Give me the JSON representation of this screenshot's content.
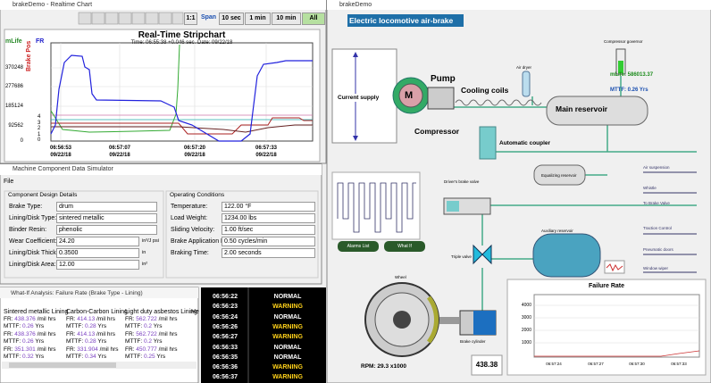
{
  "realtime_window": {
    "title": "brakeDemo - Realtime Chart",
    "toolbar": [
      "1:1",
      "Span",
      "10 sec",
      "1 min",
      "10 min",
      "All"
    ],
    "chart_title": "Real-Time Stripchart",
    "subtitle": "Time: 06:55:38 +0.046 sec. Date: 09/22/18",
    "axis_labels": {
      "left": "mLife",
      "right": "FR",
      "brake": "Brake Pos"
    },
    "y_ticks_left": [
      "370248",
      "277686",
      "185124",
      "92562",
      "0"
    ],
    "y_ticks_right": [
      "4",
      "3",
      "2",
      "1",
      "0"
    ],
    "x_ticks": [
      {
        "time": "06:56:53",
        "date": "09/22/18"
      },
      {
        "time": "06:57:07",
        "date": "09/22/18"
      },
      {
        "time": "06:57:20",
        "date": "09/22/18"
      },
      {
        "time": "06:57:33",
        "date": "09/22/18"
      }
    ]
  },
  "simulator_window": {
    "title": "Machine Component Data Simulator",
    "menu": "File",
    "design_group": "Component Design Details",
    "design_fields": [
      {
        "label": "Brake Type:",
        "value": "drum",
        "kind": "combo"
      },
      {
        "label": "Lining/Disk Type:",
        "value": "sintered metallic",
        "kind": "combo"
      },
      {
        "label": "Binder Resin:",
        "value": "phenolic",
        "kind": "combo"
      },
      {
        "label": "Wear Coefficient:",
        "value": "24.20",
        "kind": "spin",
        "unit": "in³/J psi"
      },
      {
        "label": "Lining/Disk Thickness:",
        "value": "0.3500",
        "kind": "spin",
        "unit": "in"
      },
      {
        "label": "Lining/Disk Area:",
        "value": "12.00",
        "kind": "spin",
        "unit": "in²"
      }
    ],
    "operating_group": "Operating Conditions",
    "operating_fields": [
      {
        "label": "Temperature:",
        "value": "122.00 °F"
      },
      {
        "label": "Load Weight:",
        "value": "1234.00 lbs"
      },
      {
        "label": "Sliding Velocity:",
        "value": "1.00 ft/sec"
      },
      {
        "label": "Brake Application Rate:",
        "value": "0.50 cycles/min"
      },
      {
        "label": "Braking Time:",
        "value": "2.00 seconds"
      }
    ]
  },
  "whatif_window": {
    "title": "What-If Analysis: Failure Rate (Brake Type - Lining)",
    "columns": [
      "Sintered metallic Lining",
      "Carbon-Carbon Lining",
      "Light duty asbestos Lining",
      "He"
    ],
    "fr_label": "FR:",
    "fr_unit": "/mil hrs",
    "mttf_label": "MTTF:",
    "mttf_unit": "Yrs",
    "rows": [
      [
        {
          "fr": "438.376",
          "mttf": "0.26"
        },
        {
          "fr": "414.13",
          "mttf": "0.28"
        },
        {
          "fr": "562.722",
          "mttf": "0.2"
        }
      ],
      [
        {
          "fr": "438.376",
          "mttf": "0.26"
        },
        {
          "fr": "414.13",
          "mttf": "0.28"
        },
        {
          "fr": "562.722",
          "mttf": "0.2"
        }
      ],
      [
        {
          "fr": "351.301",
          "mttf": "0.32"
        },
        {
          "fr": "331.904",
          "mttf": "0.34"
        },
        {
          "fr": "450.777",
          "mttf": "0.25"
        }
      ]
    ]
  },
  "status_log": [
    {
      "time": "06:56:22",
      "status": "NORMAL"
    },
    {
      "time": "06:56:23",
      "status": "WARNING"
    },
    {
      "time": "06:56:24",
      "status": "NORMAL"
    },
    {
      "time": "06:56:26",
      "status": "WARNING"
    },
    {
      "time": "06:56:27",
      "status": "WARNING"
    },
    {
      "time": "06:56:33",
      "status": "NORMAL"
    },
    {
      "time": "06:56:35",
      "status": "NORMAL"
    },
    {
      "time": "06:56:36",
      "status": "WARNING"
    },
    {
      "time": "06:56:37",
      "status": "WARNING"
    }
  ],
  "plant_window": {
    "title": "brakeDemo",
    "heading": "Electric locomotive air-brake",
    "current_supply": "Current supply",
    "motor": "M",
    "pump": "Pump",
    "cooling_coils": "Cooling coils",
    "compressor": "Compressor",
    "air_dryer": "Air dryer",
    "compressor_governor": "Compressor governor",
    "mlife": "mLife: 586013.37",
    "mttf": "MTTF: 0.26 Yrs",
    "main_reservoir": "Main reservoir",
    "automatic_coupler": "Automatic coupler",
    "equalizing_reservoir": "Equalizing reservoir",
    "drivers_brake_valve": "Driver's brake valve",
    "outputs": [
      "Air suspension",
      "Whistle",
      "To Brake Valve",
      "Traction Control",
      "Pneumatic doors",
      "Window wiper"
    ],
    "auxiliary_reservoir": "Auxiliary reservoir",
    "triple_valve": "Triple valve",
    "buttons": [
      "Alarms List",
      "What If"
    ],
    "wheel": "Wheel",
    "brake_cylinder": "Brake cylinder",
    "rpm": "RPM:  29.3 x1000",
    "readout": "438.38",
    "failure_chart": {
      "title": "Failure Rate",
      "y_ticks": [
        "4000",
        "3000",
        "2000",
        "1000"
      ],
      "x_ticks": [
        "06:57:24",
        "06:57:27",
        "06:57:30",
        "06:57:33"
      ]
    }
  }
}
